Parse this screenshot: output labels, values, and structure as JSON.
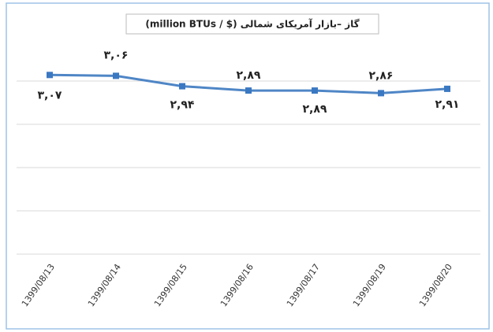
{
  "chart_data": {
    "type": "line",
    "title": "گاز –بازار آمریکای شمالی ($ / million BTUs)",
    "categories": [
      "1399/08/13",
      "1399/08/14",
      "1399/08/15",
      "1399/08/16",
      "1399/08/17",
      "1399/08/19",
      "1399/08/20"
    ],
    "values": [
      3.07,
      3.06,
      2.94,
      2.89,
      2.89,
      2.86,
      2.91
    ],
    "value_labels": [
      "۳,۰۷",
      "۳,۰۶",
      "۲,۹۴",
      "۲,۸۹",
      "۲,۸۹",
      "۲,۸۶",
      "۲,۹۱"
    ],
    "color": "#4f86c6",
    "ylim": [
      1,
      3.5
    ],
    "yticks": [
      1,
      1.5,
      2,
      2.5,
      3
    ],
    "grid": true
  }
}
